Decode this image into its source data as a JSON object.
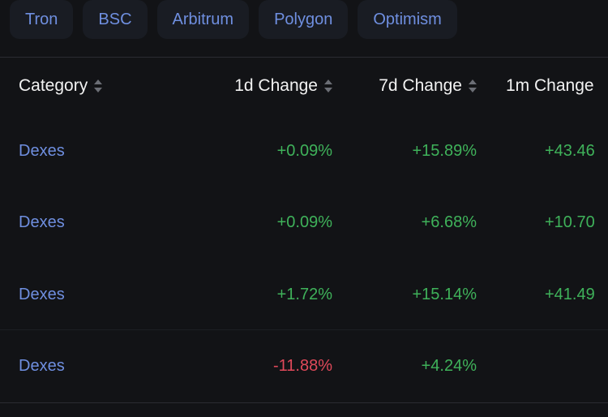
{
  "chains": [
    "Tron",
    "BSC",
    "Arbitrum",
    "Polygon",
    "Optimism"
  ],
  "table": {
    "headers": [
      "Category",
      "1d Change",
      "7d Change",
      "1m Change"
    ],
    "rows": [
      {
        "category": "Dexes",
        "d1": "+0.09%",
        "d7": "+15.89%",
        "m1": "+43.46"
      },
      {
        "category": "Dexes",
        "d1": "+0.09%",
        "d7": "+6.68%",
        "m1": "+10.70"
      },
      {
        "category": "Dexes",
        "d1": "+1.72%",
        "d7": "+15.14%",
        "m1": "+41.49"
      },
      {
        "category": "Dexes",
        "d1": "-11.88%",
        "d7": "+4.24%",
        "m1": ""
      }
    ]
  },
  "colors": {
    "positive": "#3fb25a",
    "negative": "#e0495a",
    "link": "#6f8fe0",
    "background": "#121316"
  }
}
